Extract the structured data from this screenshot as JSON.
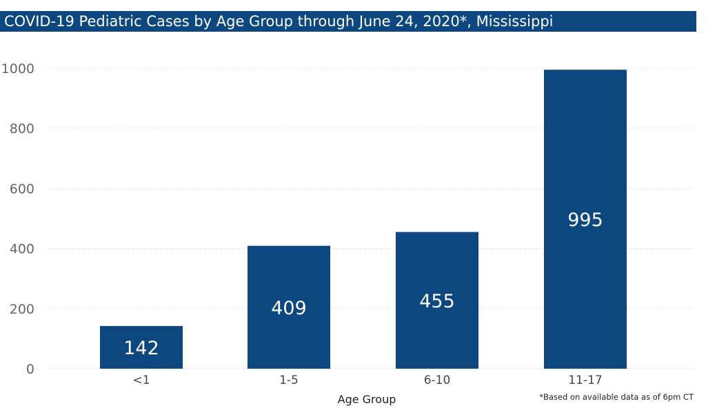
{
  "title": "COVID-19 Pediatric Cases by Age Group through June 24, 2020*, Mississippi",
  "footnote": "*Based on available data as of 6pm CT",
  "colors": {
    "bar": "#0d4780",
    "title_bg": "#0d4780",
    "grid": "#c8c8c8"
  },
  "chart_data": {
    "type": "bar",
    "categories": [
      "<1",
      "1-5",
      "6-10",
      "11-17"
    ],
    "values": [
      142,
      409,
      455,
      995
    ],
    "xlabel": "Age Group",
    "ylabel": "",
    "ylim": [
      0,
      1000
    ],
    "yticks": [
      0,
      200,
      400,
      600,
      800,
      1000
    ],
    "grid": "horizontal dotted",
    "legend": "none"
  }
}
